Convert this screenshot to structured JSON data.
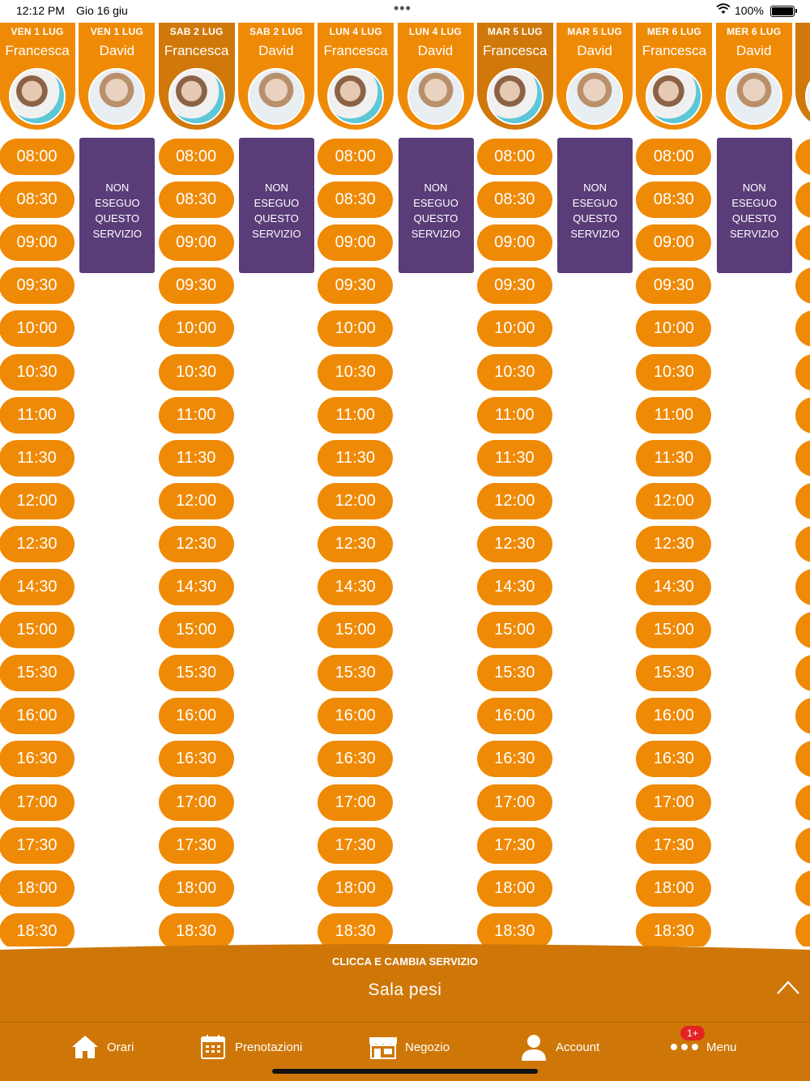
{
  "status_bar": {
    "time": "12:12 PM",
    "date": "Gio 16 giu",
    "battery": "100%"
  },
  "columns": [
    {
      "day": "VEN 1 LUG",
      "staff": "Francesca"
    },
    {
      "day": "VEN 1 LUG",
      "staff": "David"
    },
    {
      "day": "SAB 2 LUG",
      "staff": "Francesca"
    },
    {
      "day": "SAB 2 LUG",
      "staff": "David"
    },
    {
      "day": "LUN 4 LUG",
      "staff": "Francesca"
    },
    {
      "day": "LUN 4 LUG",
      "staff": "David"
    },
    {
      "day": "MAR 5 LUG",
      "staff": "Francesca"
    },
    {
      "day": "MAR 5 LUG",
      "staff": "David"
    },
    {
      "day": "MER 6 LUG",
      "staff": "Francesca"
    },
    {
      "day": "MER 6 LUG",
      "staff": "David"
    },
    {
      "day": "",
      "staff": "Fr"
    }
  ],
  "time_slots": [
    "08:00",
    "08:30",
    "09:00",
    "09:30",
    "10:00",
    "10:30",
    "11:00",
    "11:30",
    "12:00",
    "12:30",
    "14:30",
    "15:00",
    "15:30",
    "16:00",
    "16:30",
    "17:00",
    "17:30",
    "18:00",
    "18:30"
  ],
  "unavailable_text": [
    "NON",
    "ESEGUO",
    "QUESTO",
    "SERVIZIO"
  ],
  "service_panel": {
    "hint": "CLICCA E CAMBIA SERVIZIO",
    "service": "Sala pesi"
  },
  "tabbar": {
    "tabs": [
      {
        "label": "Orari",
        "icon": "home-icon"
      },
      {
        "label": "Prenotazioni",
        "icon": "calendar-icon"
      },
      {
        "label": "Negozio",
        "icon": "shop-icon"
      },
      {
        "label": "Account",
        "icon": "user-icon"
      },
      {
        "label": "Menu",
        "icon": "more-dots-icon"
      }
    ],
    "menu_badge": "1+"
  },
  "colors": {
    "orange": "#ef8a06",
    "dark_orange": "#ce7708",
    "purple": "#593c78",
    "badge_red": "#e42222"
  }
}
